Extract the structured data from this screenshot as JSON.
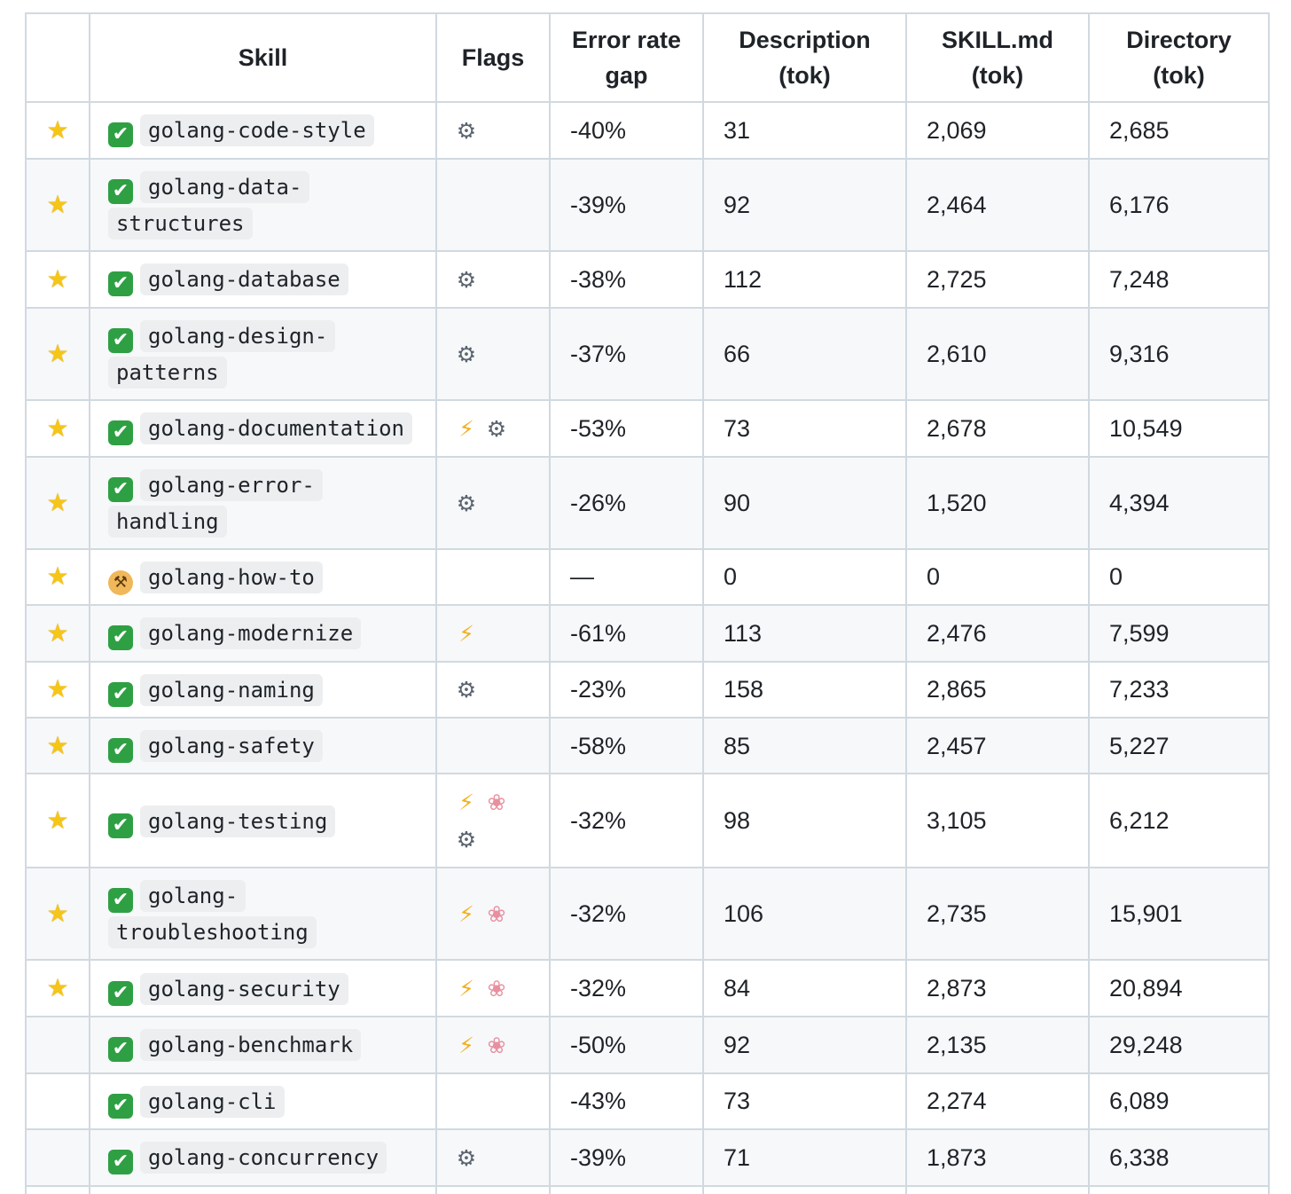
{
  "headers": {
    "star": "",
    "skill": "Skill",
    "flags": "Flags",
    "error_rate_line1": "Error rate",
    "error_rate_line2": "gap",
    "description_line1": "Description",
    "description_line2": "(tok)",
    "skill_md_line1": "SKILL.md",
    "skill_md_line2": "(tok)",
    "directory_line1": "Directory",
    "directory_line2": "(tok)"
  },
  "icon_legend": {
    "star": "star-icon",
    "status_done": "check-mark-icon",
    "status_wip": "construction-worker-icon",
    "lightning": "lightning-icon",
    "gear": "gear-icon",
    "brain": "brain-icon"
  },
  "rows": [
    {
      "starred": true,
      "status": "done",
      "skill": "golang-code-style",
      "flags": [
        "gear"
      ],
      "error_rate_gap": "-40%",
      "description_tok": "31",
      "skill_md_tok": "2,069",
      "directory_tok": "2,685"
    },
    {
      "starred": true,
      "status": "done",
      "skill": "golang-data-structures",
      "flags": [],
      "error_rate_gap": "-39%",
      "description_tok": "92",
      "skill_md_tok": "2,464",
      "directory_tok": "6,176"
    },
    {
      "starred": true,
      "status": "done",
      "skill": "golang-database",
      "flags": [
        "gear"
      ],
      "error_rate_gap": "-38%",
      "description_tok": "112",
      "skill_md_tok": "2,725",
      "directory_tok": "7,248"
    },
    {
      "starred": true,
      "status": "done",
      "skill": "golang-design-patterns",
      "flags": [
        "gear"
      ],
      "error_rate_gap": "-37%",
      "description_tok": "66",
      "skill_md_tok": "2,610",
      "directory_tok": "9,316"
    },
    {
      "starred": true,
      "status": "done",
      "skill": "golang-documentation",
      "flags": [
        "lightning",
        "gear"
      ],
      "error_rate_gap": "-53%",
      "description_tok": "73",
      "skill_md_tok": "2,678",
      "directory_tok": "10,549"
    },
    {
      "starred": true,
      "status": "done",
      "skill": "golang-error-handling",
      "flags": [
        "gear"
      ],
      "error_rate_gap": "-26%",
      "description_tok": "90",
      "skill_md_tok": "1,520",
      "directory_tok": "4,394"
    },
    {
      "starred": true,
      "status": "wip",
      "skill": "golang-how-to",
      "flags": [],
      "error_rate_gap": "—",
      "description_tok": "0",
      "skill_md_tok": "0",
      "directory_tok": "0"
    },
    {
      "starred": true,
      "status": "done",
      "skill": "golang-modernize",
      "flags": [
        "lightning"
      ],
      "error_rate_gap": "-61%",
      "description_tok": "113",
      "skill_md_tok": "2,476",
      "directory_tok": "7,599"
    },
    {
      "starred": true,
      "status": "done",
      "skill": "golang-naming",
      "flags": [
        "gear"
      ],
      "error_rate_gap": "-23%",
      "description_tok": "158",
      "skill_md_tok": "2,865",
      "directory_tok": "7,233"
    },
    {
      "starred": true,
      "status": "done",
      "skill": "golang-safety",
      "flags": [],
      "error_rate_gap": "-58%",
      "description_tok": "85",
      "skill_md_tok": "2,457",
      "directory_tok": "5,227"
    },
    {
      "starred": true,
      "status": "done",
      "skill": "golang-testing",
      "flags": [
        "lightning",
        "brain",
        "gear"
      ],
      "error_rate_gap": "-32%",
      "description_tok": "98",
      "skill_md_tok": "3,105",
      "directory_tok": "6,212"
    },
    {
      "starred": true,
      "status": "done",
      "skill": "golang-troubleshooting",
      "flags": [
        "lightning",
        "brain"
      ],
      "error_rate_gap": "-32%",
      "description_tok": "106",
      "skill_md_tok": "2,735",
      "directory_tok": "15,901"
    },
    {
      "starred": true,
      "status": "done",
      "skill": "golang-security",
      "flags": [
        "lightning",
        "brain"
      ],
      "error_rate_gap": "-32%",
      "description_tok": "84",
      "skill_md_tok": "2,873",
      "directory_tok": "20,894"
    },
    {
      "starred": false,
      "status": "done",
      "skill": "golang-benchmark",
      "flags": [
        "lightning",
        "brain"
      ],
      "error_rate_gap": "-50%",
      "description_tok": "92",
      "skill_md_tok": "2,135",
      "directory_tok": "29,248"
    },
    {
      "starred": false,
      "status": "done",
      "skill": "golang-cli",
      "flags": [],
      "error_rate_gap": "-43%",
      "description_tok": "73",
      "skill_md_tok": "2,274",
      "directory_tok": "6,089"
    },
    {
      "starred": false,
      "status": "done",
      "skill": "golang-concurrency",
      "flags": [
        "gear"
      ],
      "error_rate_gap": "-39%",
      "description_tok": "71",
      "skill_md_tok": "1,873",
      "directory_tok": "6,338"
    }
  ]
}
